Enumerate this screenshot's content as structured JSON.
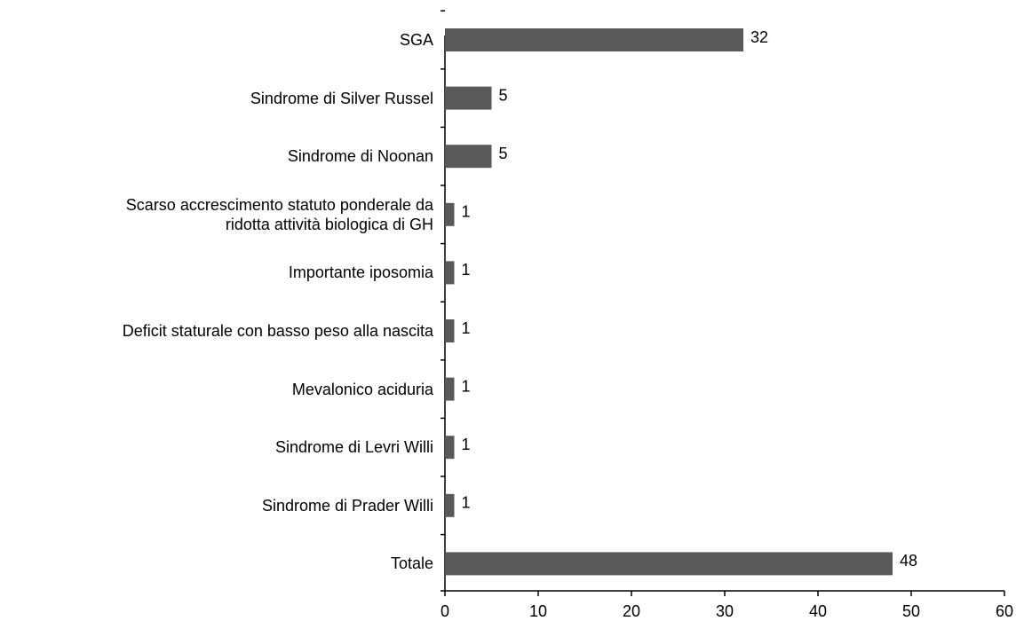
{
  "chart_data": {
    "type": "hbar",
    "categories": [
      "SGA",
      "Sindrome di Silver Russel",
      "Sindrome di Noonan",
      "Scarso accrescimento statuto ponderale da\nridotta attività biologica di GH",
      "Importante iposomia",
      "Deficit staturale con basso peso alla nascita",
      "Mevalonico aciduria",
      "Sindrome di Levri Willi",
      "Sindrome di Prader Willi",
      "Totale"
    ],
    "values": [
      32,
      5,
      5,
      1,
      1,
      1,
      1,
      1,
      1,
      48
    ],
    "color": "#595959",
    "xlim": [
      0,
      60
    ],
    "xticks": [
      0,
      10,
      20,
      30,
      40,
      50,
      60
    ]
  }
}
